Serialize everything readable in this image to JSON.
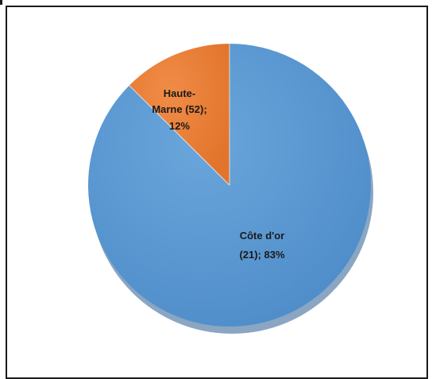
{
  "chart_data": {
    "type": "pie",
    "title": "",
    "slices": [
      {
        "category": "Côte d'or",
        "count_label": "(21);",
        "percent_label": "83%",
        "value": 83,
        "color": "#5b9bd5"
      },
      {
        "category": "Haute-Marne",
        "count_label": "(52);",
        "percent_label": "12%",
        "value": 12,
        "color": "#ed7d31"
      }
    ],
    "start_angle_deg": 0,
    "direction": "clockwise",
    "legend": "none"
  },
  "labels": {
    "cote_line1": "Côte d'or",
    "cote_line2": "(21); 83%",
    "haute_line1": "Haute-",
    "haute_line2": "Marne (52);",
    "haute_line3": "12%"
  }
}
